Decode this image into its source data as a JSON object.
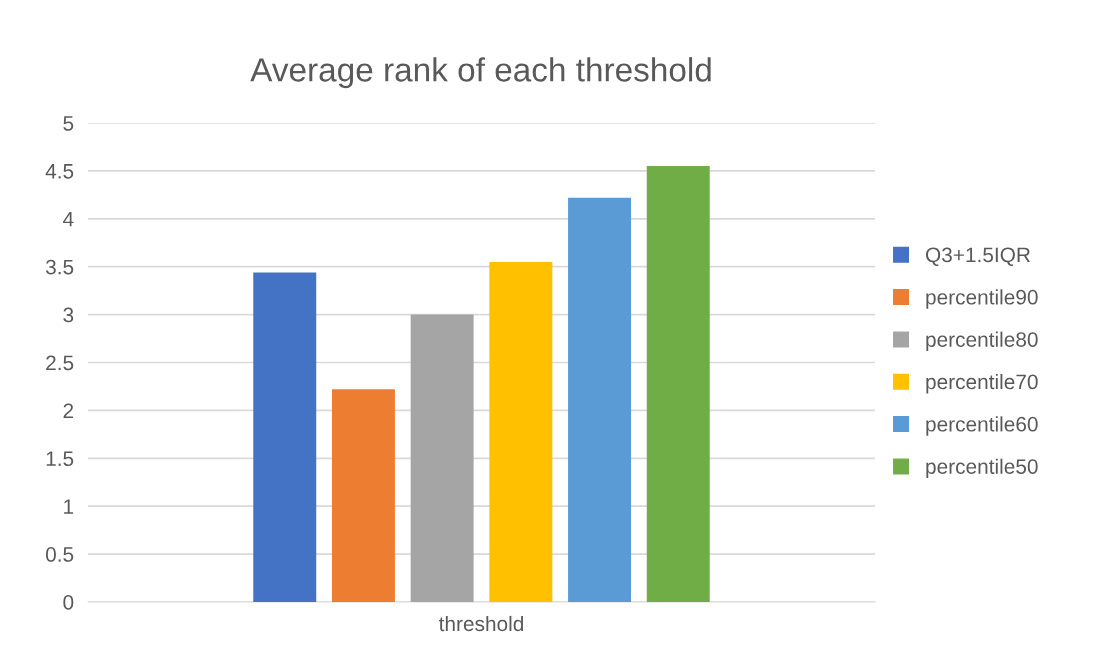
{
  "chart_data": {
    "type": "bar",
    "title": "Average rank of each threshold",
    "categories": [
      "threshold"
    ],
    "series": [
      {
        "name": "Q3+1.5IQR",
        "color": "#4472c4",
        "values": [
          3.44
        ]
      },
      {
        "name": "percentile90",
        "color": "#ed7d31",
        "values": [
          2.22
        ]
      },
      {
        "name": "percentile80",
        "color": "#a5a5a5",
        "values": [
          3.0
        ]
      },
      {
        "name": "percentile70",
        "color": "#ffc000",
        "values": [
          3.55
        ]
      },
      {
        "name": "percentile60",
        "color": "#5b9bd5",
        "values": [
          4.22
        ]
      },
      {
        "name": "percentile50",
        "color": "#70ad47",
        "values": [
          4.55
        ]
      }
    ],
    "ylim": [
      0,
      5
    ],
    "yticks": [
      0,
      0.5,
      1,
      1.5,
      2,
      2.5,
      3,
      3.5,
      4,
      4.5,
      5
    ],
    "grid": "y",
    "legend": "right"
  }
}
